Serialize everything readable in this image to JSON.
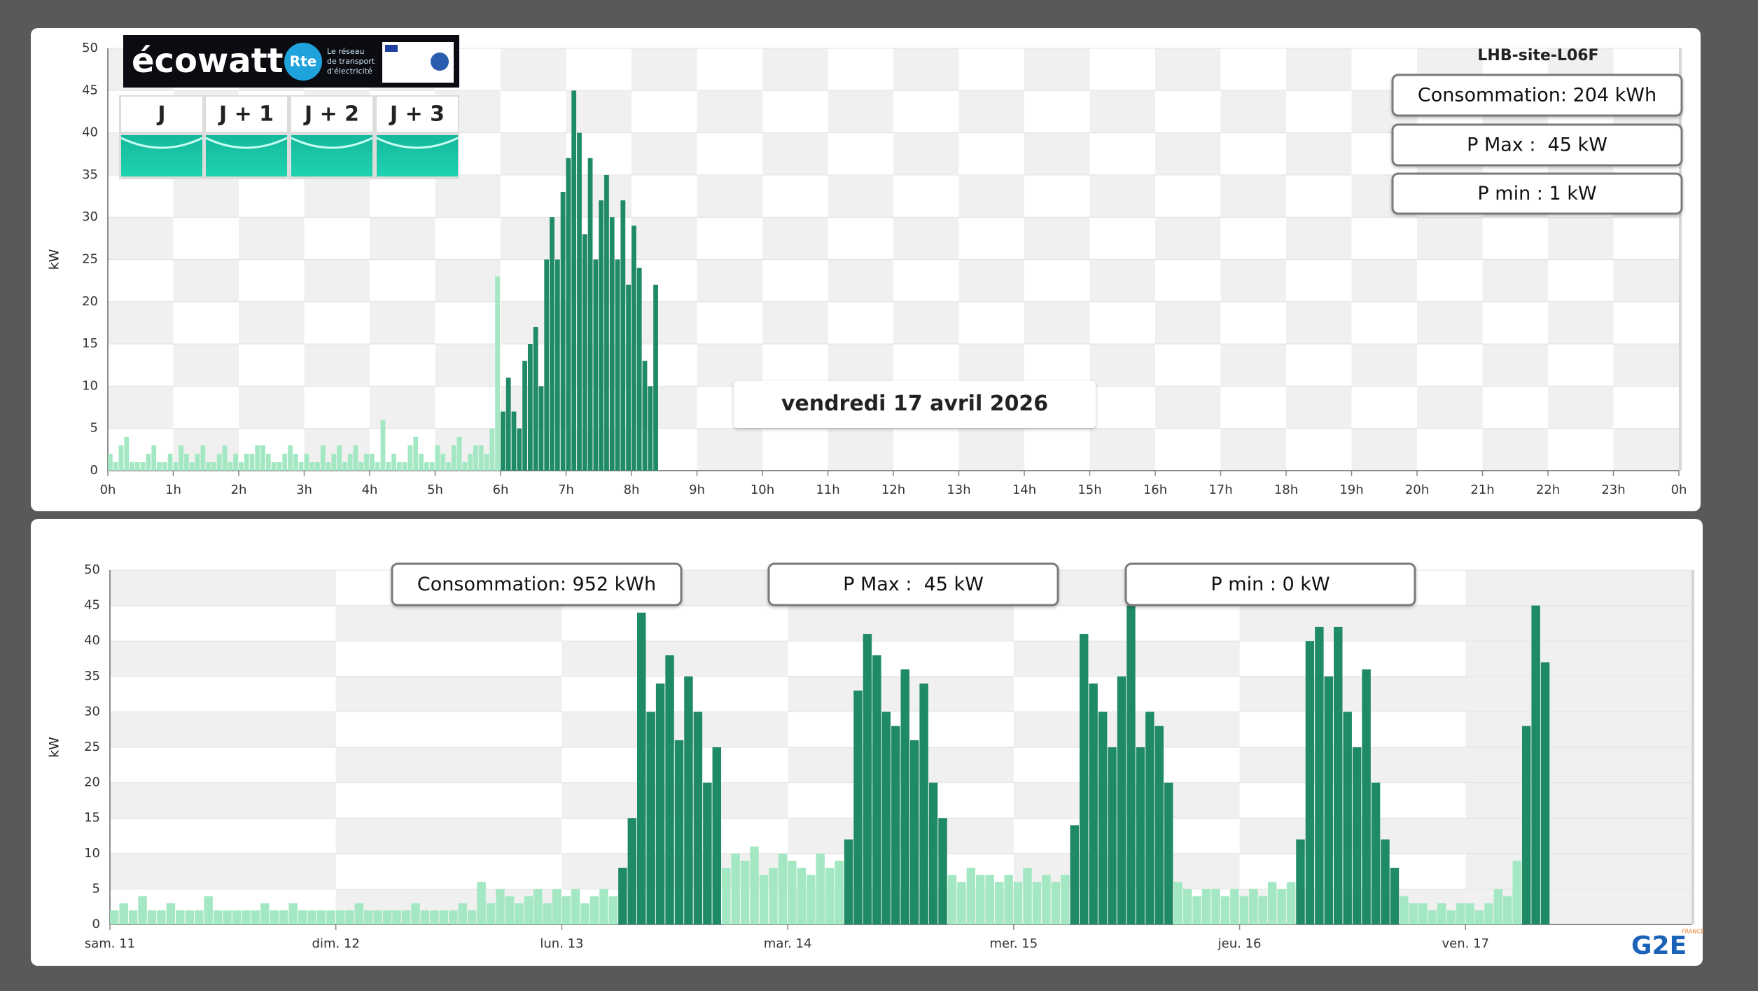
{
  "ecowatt": {
    "brand": "écowatt",
    "rte": "Rte",
    "rte_text": [
      "Le réseau",
      "de transport",
      "d'électricité"
    ],
    "days": [
      "J",
      "J + 1",
      "J + 2",
      "J + 3"
    ]
  },
  "logo": {
    "text": "G2E",
    "country": "FRANCE"
  },
  "chart_data": [
    {
      "type": "bar",
      "title": "LHB-site-L06F",
      "ylabel": "kW",
      "stats": [
        "Consommation: 204 kWh",
        "P Max :  45 kW",
        "P min : 1 kW"
      ],
      "date_label": "vendredi 17 avril 2026",
      "xlim": [
        0,
        1440
      ],
      "xticks": [
        {
          "value": 0,
          "label": "0h"
        },
        {
          "value": 60,
          "label": "1h"
        },
        {
          "value": 120,
          "label": "2h"
        },
        {
          "value": 180,
          "label": "3h"
        },
        {
          "value": 240,
          "label": "4h"
        },
        {
          "value": 300,
          "label": "5h"
        },
        {
          "value": 360,
          "label": "6h"
        },
        {
          "value": 420,
          "label": "7h"
        },
        {
          "value": 480,
          "label": "8h"
        },
        {
          "value": 540,
          "label": "9h"
        },
        {
          "value": 600,
          "label": "10h"
        },
        {
          "value": 660,
          "label": "11h"
        },
        {
          "value": 720,
          "label": "12h"
        },
        {
          "value": 780,
          "label": "13h"
        },
        {
          "value": 840,
          "label": "14h"
        },
        {
          "value": 900,
          "label": "15h"
        },
        {
          "value": 960,
          "label": "16h"
        },
        {
          "value": 1020,
          "label": "17h"
        },
        {
          "value": 1080,
          "label": "18h"
        },
        {
          "value": 1140,
          "label": "19h"
        },
        {
          "value": 1200,
          "label": "20h"
        },
        {
          "value": 1260,
          "label": "21h"
        },
        {
          "value": 1320,
          "label": "22h"
        },
        {
          "value": 1380,
          "label": "23h"
        },
        {
          "value": 1440,
          "label": "0h"
        }
      ],
      "ylim": [
        0,
        50
      ],
      "yticks": [
        0,
        5,
        10,
        15,
        20,
        25,
        30,
        35,
        40,
        45,
        50
      ],
      "grid": true,
      "series": [
        {
          "color": "#a3e8c3",
          "x": [
            0,
            5,
            10,
            15,
            20,
            25,
            30,
            35,
            40,
            45,
            50,
            55,
            60,
            65,
            70,
            75,
            80,
            85,
            90,
            95,
            100,
            105,
            110,
            115,
            120,
            125,
            130,
            135,
            140,
            145,
            150,
            155,
            160,
            165,
            170,
            175,
            180,
            185,
            190,
            195,
            200,
            205,
            210,
            215,
            220,
            225,
            230,
            235,
            240,
            245,
            250,
            255,
            260,
            265,
            270,
            275,
            280,
            285,
            290,
            295,
            300,
            305,
            310,
            315,
            320,
            325,
            330,
            335,
            340,
            345,
            350,
            355
          ],
          "values": [
            2,
            1,
            3,
            4,
            1,
            1,
            1,
            2,
            3,
            1,
            1,
            2,
            1,
            3,
            2,
            1,
            2,
            3,
            1,
            1,
            2,
            3,
            1,
            2,
            1,
            2,
            2,
            3,
            3,
            2,
            1,
            1,
            2,
            3,
            2,
            1,
            2,
            1,
            1,
            3,
            1,
            2,
            3,
            1,
            2,
            3,
            1,
            2,
            2,
            1,
            6,
            1,
            2,
            1,
            1,
            3,
            4,
            2,
            1,
            1,
            3,
            2,
            1,
            3,
            4,
            1,
            2,
            3,
            3,
            2,
            5,
            23
          ]
        },
        {
          "color": "#1f8a66",
          "x": [
            360,
            365,
            370,
            375,
            380,
            385,
            390,
            395,
            400,
            405,
            410,
            415,
            420,
            425,
            430,
            435,
            440,
            445,
            450,
            455,
            460,
            465,
            470,
            475,
            480,
            485,
            490,
            495,
            500
          ],
          "values": [
            7,
            11,
            7,
            5,
            13,
            15,
            17,
            10,
            25,
            30,
            25,
            33,
            37,
            45,
            40,
            28,
            37,
            25,
            32,
            35,
            30,
            25,
            32,
            22,
            29,
            24,
            13,
            10,
            22
          ]
        }
      ]
    },
    {
      "type": "bar",
      "ylabel": "kW",
      "stats": [
        "Consommation: 952 kWh",
        "P Max :  45 kW",
        "P min : 0 kW"
      ],
      "xlim": [
        0,
        168
      ],
      "xticks": [
        {
          "value": 0,
          "label": "sam. 11"
        },
        {
          "value": 24,
          "label": "dim. 12"
        },
        {
          "value": 48,
          "label": "lun. 13"
        },
        {
          "value": 72,
          "label": "mar. 14"
        },
        {
          "value": 96,
          "label": "mer. 15"
        },
        {
          "value": 120,
          "label": "jeu. 16"
        },
        {
          "value": 144,
          "label": "ven. 17"
        }
      ],
      "ylim": [
        0,
        50
      ],
      "yticks": [
        0,
        5,
        10,
        15,
        20,
        25,
        30,
        35,
        40,
        45,
        50
      ],
      "grid": true,
      "series": [
        {
          "color": "#a3e8c3",
          "x": [
            0,
            1,
            2,
            3,
            4,
            5,
            6,
            7,
            8,
            9,
            10,
            11,
            12,
            13,
            14,
            15,
            16,
            17,
            18,
            19,
            20,
            21,
            22,
            23,
            24,
            25,
            26,
            27,
            28,
            29,
            30,
            31,
            32,
            33,
            34,
            35,
            36,
            37,
            38,
            39,
            40,
            41,
            42,
            43,
            44,
            45,
            46,
            47,
            48,
            49,
            50,
            51,
            52,
            53,
            65,
            66,
            67,
            68,
            69,
            70,
            71,
            72,
            73,
            74,
            75,
            76,
            77,
            89,
            90,
            91,
            92,
            93,
            94,
            95,
            96,
            97,
            98,
            99,
            100,
            101,
            113,
            114,
            115,
            116,
            117,
            118,
            119,
            120,
            121,
            122,
            123,
            124,
            125,
            137,
            138,
            139,
            140,
            141,
            142,
            143,
            144,
            145,
            146,
            147,
            148,
            149
          ],
          "values": [
            2,
            3,
            2,
            4,
            2,
            2,
            3,
            2,
            2,
            2,
            4,
            2,
            2,
            2,
            2,
            2,
            3,
            2,
            2,
            3,
            2,
            2,
            2,
            2,
            2,
            2,
            3,
            2,
            2,
            2,
            2,
            2,
            3,
            2,
            2,
            2,
            2,
            3,
            2,
            6,
            3,
            5,
            4,
            3,
            4,
            5,
            3,
            5,
            4,
            5,
            3,
            4,
            5,
            4,
            8,
            10,
            9,
            11,
            7,
            8,
            10,
            9,
            8,
            7,
            10,
            8,
            9,
            7,
            6,
            8,
            7,
            7,
            6,
            7,
            6,
            8,
            6,
            7,
            6,
            7,
            6,
            5,
            4,
            5,
            5,
            4,
            5,
            4,
            5,
            4,
            6,
            5,
            6,
            4,
            3,
            3,
            2,
            3,
            2,
            3,
            3,
            2,
            3,
            5,
            4,
            9
          ]
        },
        {
          "color": "#1f8a66",
          "x": [
            54,
            55,
            56,
            57,
            58,
            59,
            60,
            61,
            62,
            63,
            64,
            78,
            79,
            80,
            81,
            82,
            83,
            84,
            85,
            86,
            87,
            88,
            102,
            103,
            104,
            105,
            106,
            107,
            108,
            109,
            110,
            111,
            112,
            126,
            127,
            128,
            129,
            130,
            131,
            132,
            133,
            134,
            135,
            136,
            150,
            151,
            152
          ],
          "values": [
            8,
            15,
            44,
            30,
            34,
            38,
            26,
            35,
            30,
            20,
            25,
            12,
            33,
            41,
            38,
            30,
            28,
            36,
            26,
            34,
            20,
            15,
            14,
            41,
            34,
            30,
            25,
            35,
            45,
            25,
            30,
            28,
            20,
            12,
            40,
            42,
            35,
            42,
            30,
            25,
            36,
            20,
            12,
            8,
            28,
            45,
            37
          ]
        }
      ]
    }
  ]
}
